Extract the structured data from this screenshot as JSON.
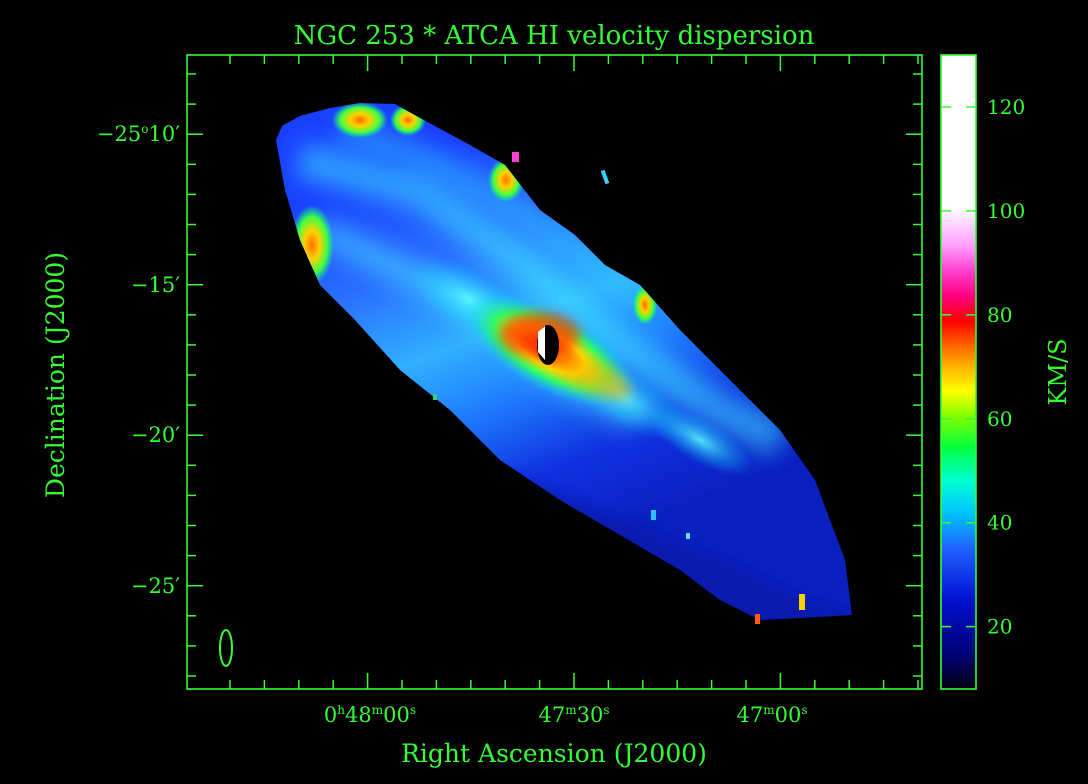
{
  "title": "NGC 253 * ATCA HI velocity dispersion",
  "xlabel": "Right Ascension (J2000)",
  "ylabel": "Declination (J2000)",
  "colorbar_label": "KM/S",
  "colors": {
    "axis": "#33ff33",
    "background": "#000000"
  },
  "x_ticks": [
    {
      "h": "0",
      "m": "48",
      "s": "00"
    },
    {
      "h": "",
      "m": "47",
      "s": "30"
    },
    {
      "h": "",
      "m": "47",
      "s": "00"
    }
  ],
  "y_ticks": [
    {
      "deg": "−25",
      "min": "10",
      "value": -10
    },
    {
      "deg": "",
      "min": "−15",
      "value": -15
    },
    {
      "deg": "",
      "min": "−20",
      "value": -20
    },
    {
      "deg": "",
      "min": "−25",
      "value": -25
    }
  ],
  "colorbar": {
    "min": 8,
    "max": 130,
    "ticks": [
      "20",
      "40",
      "60",
      "80",
      "100",
      "120"
    ],
    "tick_values": [
      20,
      40,
      60,
      80,
      100,
      120
    ]
  }
}
